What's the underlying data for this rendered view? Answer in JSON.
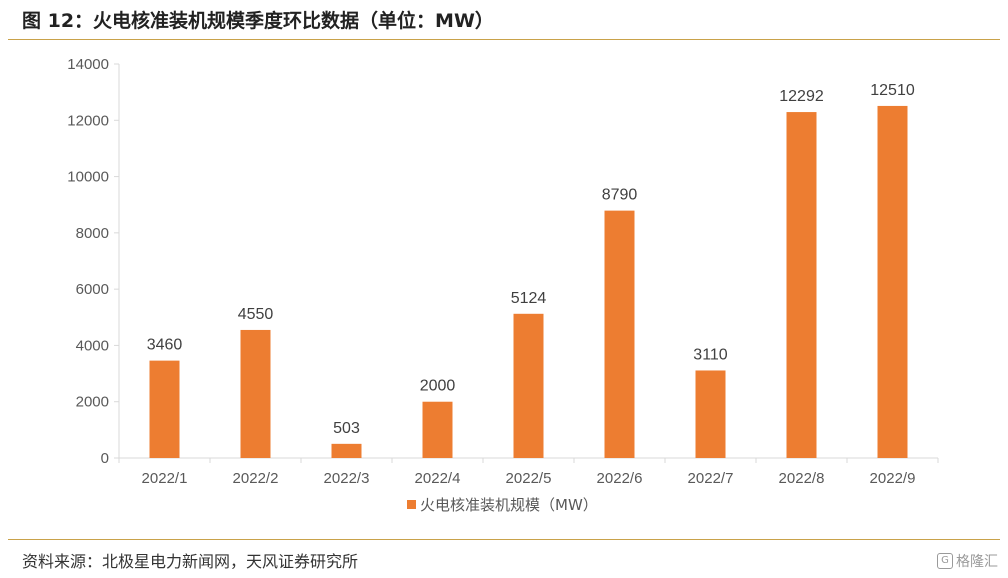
{
  "figure": {
    "title": "图 12：火电核准装机规模季度环比数据（单位：MW）",
    "source": "资料来源：北极星电力新闻网，天风证券研究所",
    "watermark": "格隆汇",
    "watermark_mark": "G"
  },
  "colors": {
    "bar": "#ed7d31",
    "axis": "#d9d9d9",
    "rule": "#c9a24a",
    "text": "#595959"
  },
  "chart_data": {
    "type": "bar",
    "title": "",
    "xlabel": "",
    "ylabel": "",
    "categories": [
      "2022/1",
      "2022/2",
      "2022/3",
      "2022/4",
      "2022/5",
      "2022/6",
      "2022/7",
      "2022/8",
      "2022/9"
    ],
    "series": [
      {
        "name": "火电核准装机规模（MW）",
        "values": [
          3460,
          4550,
          503,
          2000,
          5124,
          8790,
          3110,
          12292,
          12510
        ]
      }
    ],
    "ylim": [
      0,
      14000
    ],
    "yticks": [
      0,
      2000,
      4000,
      6000,
      8000,
      10000,
      12000,
      14000
    ],
    "grid": false,
    "legend": "bottom-center",
    "data_labels": true
  }
}
